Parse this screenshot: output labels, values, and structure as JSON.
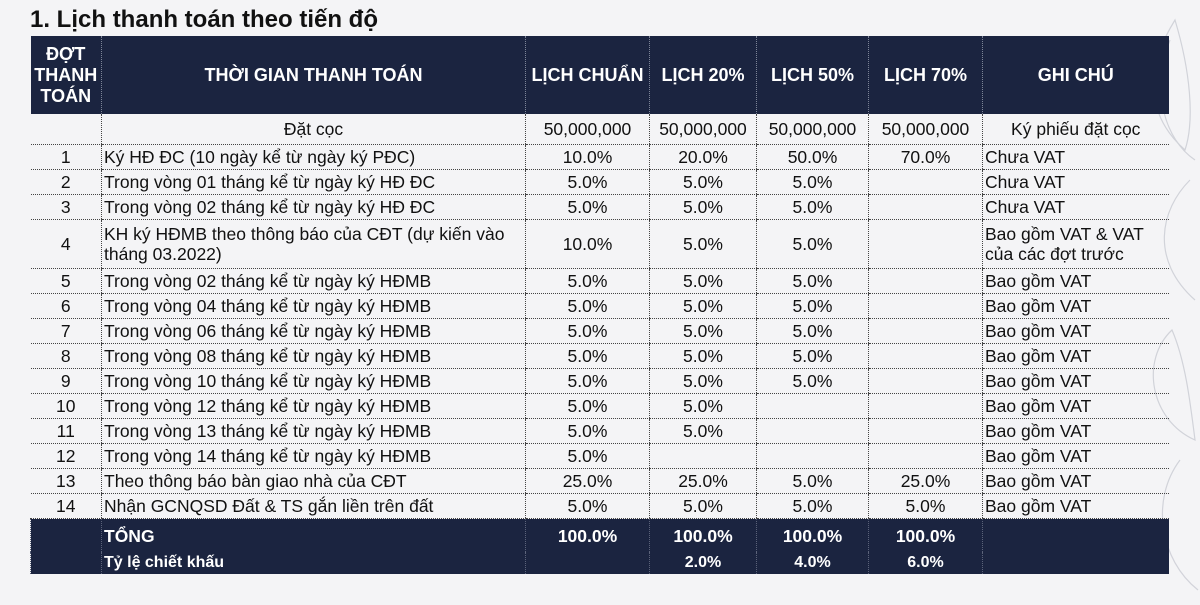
{
  "title": "1. Lịch thanh toán theo tiến độ",
  "headers": [
    "ĐỢT THANH TOÁN",
    "THỜI GIAN THANH TOÁN",
    "LỊCH CHUẨN",
    "LỊCH 20%",
    "LỊCH 50%",
    "LỊCH 70%",
    "GHI CHÚ"
  ],
  "deposit": [
    "",
    "Đặt cọc",
    "50,000,000",
    "50,000,000",
    "50,000,000",
    "50,000,000",
    "Ký phiếu đặt cọc"
  ],
  "rows": [
    [
      "1",
      "Ký HĐ ĐC (10 ngày kể từ ngày ký PĐC)",
      "10.0%",
      "20.0%",
      "50.0%",
      "70.0%",
      "Chưa VAT"
    ],
    [
      "2",
      "Trong vòng 01 tháng kể từ ngày ký HĐ ĐC",
      "5.0%",
      "5.0%",
      "5.0%",
      "",
      "Chưa VAT"
    ],
    [
      "3",
      "Trong vòng 02 tháng kể từ ngày ký HĐ ĐC",
      "5.0%",
      "5.0%",
      "5.0%",
      "",
      "Chưa VAT"
    ],
    [
      "4",
      "KH ký HĐMB theo thông báo của CĐT (dự kiến vào tháng 03.2022)",
      "10.0%",
      "5.0%",
      "5.0%",
      "",
      "Bao gồm VAT & VAT của các đợt trước"
    ],
    [
      "5",
      "Trong vòng 02 tháng kể từ ngày ký HĐMB",
      "5.0%",
      "5.0%",
      "5.0%",
      "",
      "Bao gồm VAT"
    ],
    [
      "6",
      "Trong vòng 04 tháng kể từ ngày ký HĐMB",
      "5.0%",
      "5.0%",
      "5.0%",
      "",
      "Bao gồm VAT"
    ],
    [
      "7",
      "Trong vòng 06 tháng kể từ ngày ký HĐMB",
      "5.0%",
      "5.0%",
      "5.0%",
      "",
      "Bao gồm VAT"
    ],
    [
      "8",
      "Trong vòng 08 tháng kể từ ngày ký HĐMB",
      "5.0%",
      "5.0%",
      "5.0%",
      "",
      "Bao gồm VAT"
    ],
    [
      "9",
      "Trong vòng 10 tháng kể từ ngày ký HĐMB",
      "5.0%",
      "5.0%",
      "5.0%",
      "",
      "Bao gồm VAT"
    ],
    [
      "10",
      "Trong vòng 12 tháng kể từ ngày ký HĐMB",
      "5.0%",
      "5.0%",
      "",
      "",
      "Bao gồm VAT"
    ],
    [
      "11",
      "Trong vòng 13 tháng kể từ ngày ký HĐMB",
      "5.0%",
      "5.0%",
      "",
      "",
      "Bao gồm VAT"
    ],
    [
      "12",
      "Trong vòng 14 tháng kể từ ngày ký HĐMB",
      "5.0%",
      "",
      "",
      "",
      "Bao gồm VAT"
    ],
    [
      "13",
      "Theo thông báo bàn giao nhà của CĐT",
      "25.0%",
      "25.0%",
      "5.0%",
      "25.0%",
      "Bao gồm VAT"
    ],
    [
      "14",
      "Nhận GCNQSD Đất & TS gắn liền trên đất",
      "5.0%",
      "5.0%",
      "5.0%",
      "5.0%",
      "Bao gồm VAT"
    ]
  ],
  "total": [
    "",
    "TỔNG",
    "100.0%",
    "100.0%",
    "100.0%",
    "100.0%",
    ""
  ],
  "discount": [
    "",
    "Tỷ lệ chiết khấu",
    "",
    "2.0%",
    "4.0%",
    "6.0%",
    ""
  ]
}
